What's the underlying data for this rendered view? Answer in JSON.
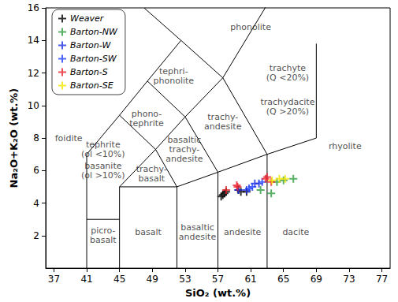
{
  "chart_data": {
    "type": "scatter",
    "x_label": "SiO₂ (wt.%)",
    "y_label": "Na₂O+K₂O (wt.%)",
    "xlim": [
      36,
      78
    ],
    "xticks": [
      37,
      41,
      45,
      49,
      53,
      57,
      61,
      65,
      69,
      73,
      77
    ],
    "ylim": [
      0,
      16
    ],
    "yticks": [
      2,
      4,
      6,
      8,
      10,
      12,
      14,
      16
    ],
    "grid": false,
    "legend": "upper left",
    "marker": "plus",
    "series": [
      {
        "name": "Weaver",
        "color": "#000000",
        "x": [
          57.4,
          57.6,
          57.8,
          58.0,
          59.5,
          59.8,
          60.5
        ],
        "values": [
          4.4,
          4.5,
          4.6,
          4.7,
          4.8,
          4.7,
          4.7
        ]
      },
      {
        "name": "Barton-NW",
        "color": "#2e9e3e",
        "x": [
          62.2,
          63.5,
          64.2,
          65.0,
          66.2
        ],
        "values": [
          4.8,
          4.6,
          5.3,
          5.4,
          5.5
        ]
      },
      {
        "name": "Barton-W",
        "color": "#1f2fe0",
        "x": [
          59.5,
          60.5,
          61.5,
          62.0
        ],
        "values": [
          4.8,
          4.8,
          5.2,
          5.2
        ]
      },
      {
        "name": "Barton-SW",
        "color": "#2040ff",
        "x": [
          60.8,
          61.2,
          62.4
        ],
        "values": [
          4.9,
          5.0,
          5.3
        ]
      },
      {
        "name": "Barton-S",
        "color": "#e8202a",
        "x": [
          58.0,
          59.3,
          59.4,
          62.8,
          63.0,
          63.5
        ],
        "values": [
          4.8,
          5.1,
          5.0,
          5.5,
          5.6,
          5.3
        ]
      },
      {
        "name": "Barton-SE",
        "color": "#f2e600",
        "x": [
          63.6,
          64.5,
          65.2
        ],
        "values": [
          5.4,
          5.5,
          5.5
        ]
      }
    ],
    "boundaries": [
      [
        [
          41,
          0
        ],
        [
          41,
          7
        ],
        [
          45,
          9.4
        ],
        [
          48.4,
          11.5
        ],
        [
          52.5,
          14
        ],
        [
          48,
          16
        ]
      ],
      [
        [
          41,
          3
        ],
        [
          45,
          3
        ]
      ],
      [
        [
          45,
          0
        ],
        [
          45,
          5
        ],
        [
          52,
          5
        ],
        [
          57,
          5.9
        ],
        [
          63,
          7
        ],
        [
          69,
          8
        ],
        [
          69,
          13.8
        ]
      ],
      [
        [
          52,
          0
        ],
        [
          52,
          5
        ]
      ],
      [
        [
          57,
          0
        ],
        [
          57,
          5.9
        ]
      ],
      [
        [
          63,
          0
        ],
        [
          63,
          7
        ]
      ],
      [
        [
          45,
          5
        ],
        [
          49.4,
          7.3
        ],
        [
          52,
          5
        ]
      ],
      [
        [
          49.4,
          7.3
        ],
        [
          45,
          9.4
        ]
      ],
      [
        [
          49.4,
          7.3
        ],
        [
          53,
          9.3
        ],
        [
          57,
          5.9
        ]
      ],
      [
        [
          48.4,
          11.5
        ],
        [
          53,
          9.3
        ],
        [
          57.6,
          11.7
        ],
        [
          63,
          7
        ]
      ],
      [
        [
          52.5,
          14
        ],
        [
          57.6,
          11.7
        ],
        [
          63,
          16.2
        ]
      ]
    ],
    "field_labels": [
      {
        "text": "foidite",
        "x": 38.8,
        "y": 8.0
      },
      {
        "text": "tephrite",
        "x": 43.0,
        "y": 7.6
      },
      {
        "text": "(ol <10%)",
        "x": 43.0,
        "y": 7.0
      },
      {
        "text": "basanite",
        "x": 43.0,
        "y": 6.3
      },
      {
        "text": "(ol >10%)",
        "x": 43.0,
        "y": 5.7
      },
      {
        "text": "trachy-\nbasalt",
        "x": 48.9,
        "y": 5.8
      },
      {
        "text": "basaltic\ntrachy-\nandesite",
        "x": 52.9,
        "y": 7.3
      },
      {
        "text": "phono-\ntephrite",
        "x": 48.3,
        "y": 9.2
      },
      {
        "text": "tephri-\nphonolite",
        "x": 51.6,
        "y": 11.8
      },
      {
        "text": "trachy-\nandesite",
        "x": 57.6,
        "y": 9.0
      },
      {
        "text": "trachyte\n(Q <20%)",
        "x": 65.5,
        "y": 12.0
      },
      {
        "text": "trachydacite\n(Q >20%)",
        "x": 65.5,
        "y": 9.9
      },
      {
        "text": "phonolite",
        "x": 61.0,
        "y": 14.8
      },
      {
        "text": "rhyolite",
        "x": 72.5,
        "y": 7.5
      },
      {
        "text": "picro-\nbasalt",
        "x": 43.0,
        "y": 2.0
      },
      {
        "text": "basalt",
        "x": 48.5,
        "y": 2.2
      },
      {
        "text": "basaltic\nandesite",
        "x": 54.5,
        "y": 2.2
      },
      {
        "text": "andesite",
        "x": 60.0,
        "y": 2.2
      },
      {
        "text": "dacite",
        "x": 66.5,
        "y": 2.2
      }
    ]
  }
}
